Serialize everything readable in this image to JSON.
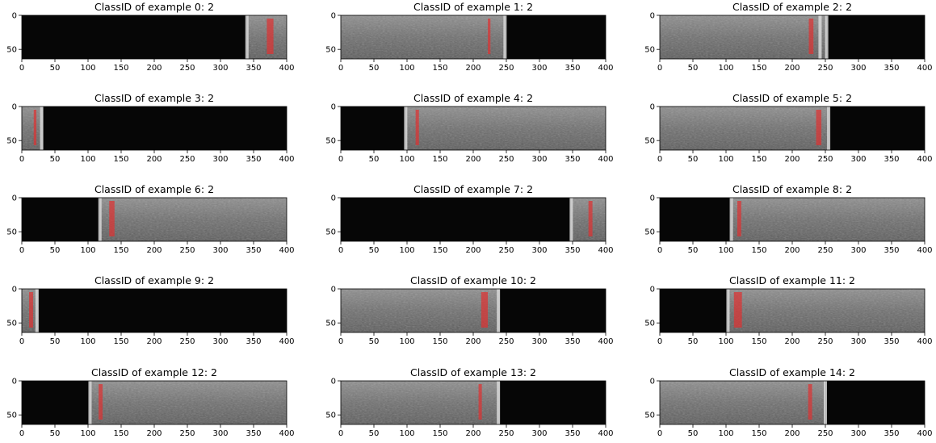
{
  "figure": {
    "background": "#ffffff",
    "x_ticks": [
      "0",
      "50",
      "100",
      "150",
      "200",
      "250",
      "300",
      "350",
      "400"
    ],
    "x_tick_values": [
      0,
      50,
      100,
      150,
      200,
      250,
      300,
      350,
      400
    ],
    "y_ticks": [
      "0",
      "50"
    ],
    "y_tick_values": [
      0,
      50
    ],
    "image_width_units": 400,
    "image_height_units": 64,
    "mask_color": "#e03030",
    "panels": [
      {
        "title": "ClassID of example 0: 2",
        "bright": [
          [
            340,
            400
          ]
        ],
        "edges": [
          340
        ],
        "defects": [
          [
            370,
            380
          ]
        ]
      },
      {
        "title": "ClassID of example 1: 2",
        "bright": [
          [
            0,
            248
          ]
        ],
        "edges": [
          248
        ],
        "defects": [
          [
            222,
            226
          ]
        ]
      },
      {
        "title": "ClassID of example 2: 2",
        "bright": [
          [
            0,
            252
          ]
        ],
        "edges": [
          242,
          252
        ],
        "defects": [
          [
            225,
            232
          ]
        ]
      },
      {
        "title": "ClassID of example 3: 2",
        "bright": [
          [
            0,
            32
          ]
        ],
        "edges": [
          30
        ],
        "defects": [
          [
            18,
            22
          ]
        ]
      },
      {
        "title": "ClassID of example 4: 2",
        "bright": [
          [
            98,
            400
          ]
        ],
        "edges": [
          98
        ],
        "defects": [
          [
            113,
            118
          ]
        ]
      },
      {
        "title": "ClassID of example 5: 2",
        "bright": [
          [
            0,
            255
          ]
        ],
        "edges": [
          255
        ],
        "defects": [
          [
            236,
            244
          ]
        ]
      },
      {
        "title": "ClassID of example 6: 2",
        "bright": [
          [
            118,
            400
          ]
        ],
        "edges": [
          118
        ],
        "defects": [
          [
            132,
            140
          ]
        ]
      },
      {
        "title": "ClassID of example 7: 2",
        "bright": [
          [
            347,
            400
          ]
        ],
        "edges": [
          348
        ],
        "defects": [
          [
            374,
            380
          ]
        ]
      },
      {
        "title": "ClassID of example 8: 2",
        "bright": [
          [
            108,
            400
          ]
        ],
        "edges": [
          108
        ],
        "defects": [
          [
            117,
            123
          ]
        ]
      },
      {
        "title": "ClassID of example 9: 2",
        "bright": [
          [
            0,
            25
          ]
        ],
        "edges": [
          23
        ],
        "defects": [
          [
            11,
            17
          ]
        ]
      },
      {
        "title": "ClassID of example 10: 2",
        "bright": [
          [
            0,
            240
          ]
        ],
        "edges": [
          238
        ],
        "defects": [
          [
            212,
            222
          ]
        ]
      },
      {
        "title": "ClassID of example 11: 2",
        "bright": [
          [
            103,
            400
          ]
        ],
        "edges": [
          103
        ],
        "defects": [
          [
            112,
            124
          ]
        ]
      },
      {
        "title": "ClassID of example 12: 2",
        "bright": [
          [
            103,
            400
          ]
        ],
        "edges": [
          103
        ],
        "defects": [
          [
            116,
            122
          ]
        ]
      },
      {
        "title": "ClassID of example 13: 2",
        "bright": [
          [
            0,
            240
          ]
        ],
        "edges": [
          238
        ],
        "defects": [
          [
            208,
            213
          ]
        ]
      },
      {
        "title": "ClassID of example 14: 2",
        "bright": [
          [
            0,
            250
          ]
        ],
        "edges": [
          250
        ],
        "defects": [
          [
            224,
            230
          ]
        ]
      }
    ]
  }
}
